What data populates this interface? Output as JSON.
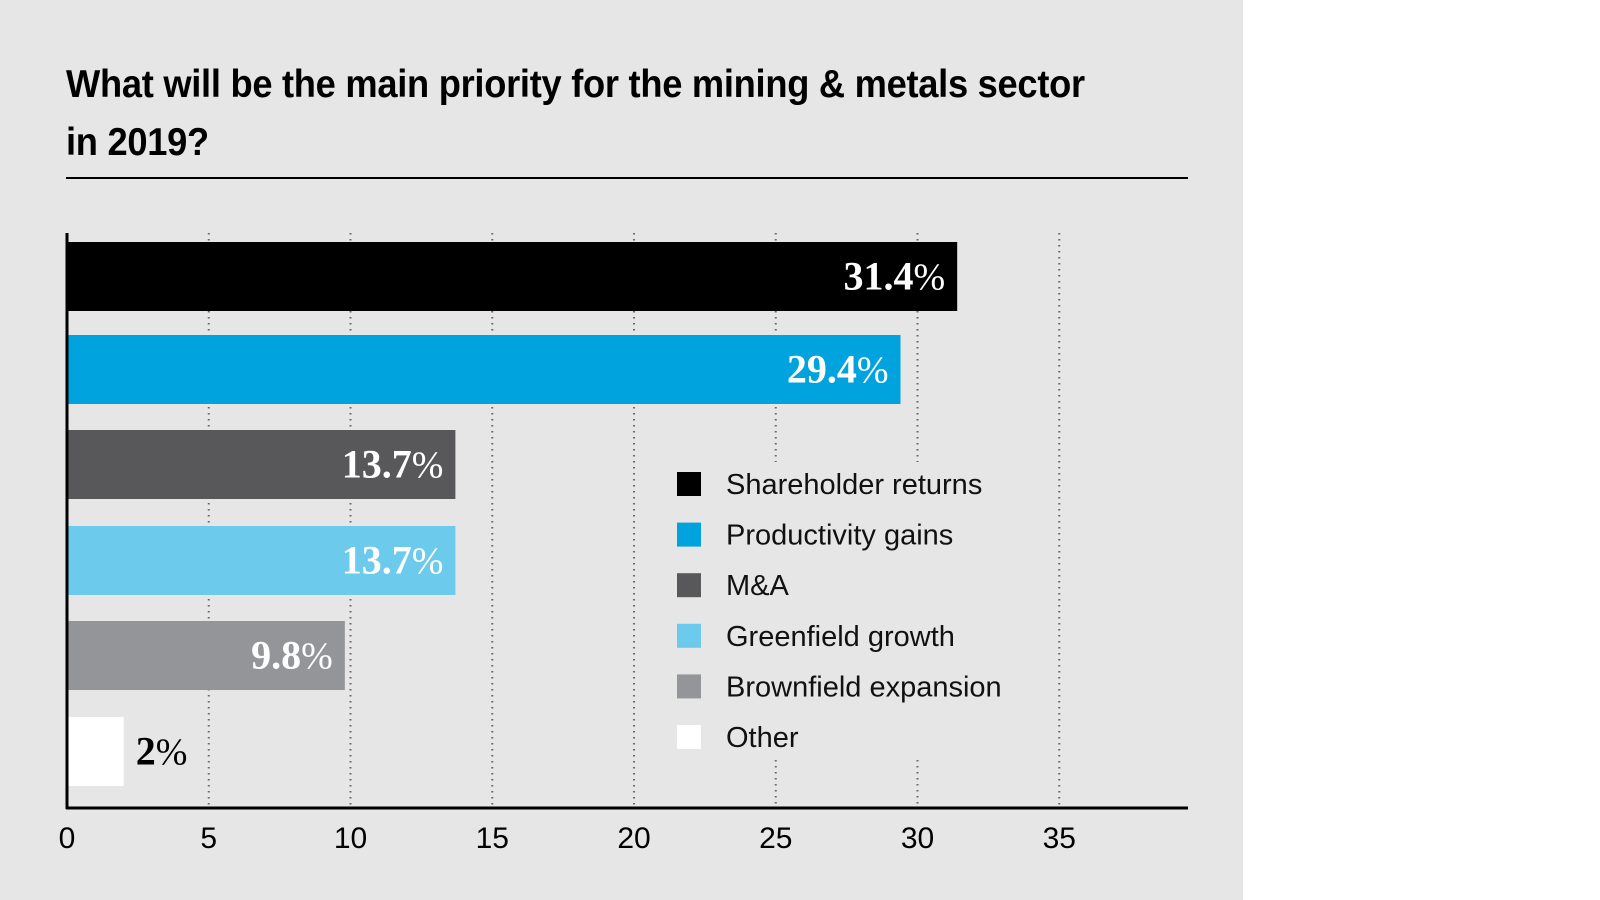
{
  "chart_data": {
    "type": "bar",
    "orientation": "horizontal",
    "title": "What will be the main priority for the mining & metals sector in 2019?",
    "categories": [
      "Shareholder returns",
      "Productivity gains",
      "M&A",
      "Greenfield growth",
      "Brownfield expansion",
      "Other"
    ],
    "values": [
      31.4,
      29.4,
      13.7,
      13.7,
      9.8,
      2
    ],
    "value_labels": [
      "31.4",
      "29.4",
      "13.7",
      "13.7",
      "9.8",
      "2"
    ],
    "value_suffix": "%",
    "colors": [
      "#000000",
      "#00a3dd",
      "#58585a",
      "#6ccaec",
      "#939598",
      "#ffffff"
    ],
    "label_colors": [
      "#ffffff",
      "#ffffff",
      "#ffffff",
      "#ffffff",
      "#ffffff",
      "#000000"
    ],
    "label_position": [
      "inside",
      "inside",
      "inside",
      "inside",
      "inside",
      "outside"
    ],
    "xlabel": "",
    "ylabel": "",
    "xlim": [
      0,
      39
    ],
    "xticks": [
      0,
      5,
      10,
      15,
      20,
      25,
      30,
      35
    ],
    "xtick_labels": [
      "0",
      "5",
      "10",
      "15",
      "20",
      "25",
      "30",
      "35"
    ],
    "grid": "vertical dotted",
    "legend": {
      "position": "center-right",
      "entries": [
        "Shareholder returns",
        "Productivity gains",
        "M&A",
        "Greenfield growth",
        "Brownfield expansion",
        "Other"
      ]
    }
  },
  "colors": {
    "panel_background": "#e6e6e6",
    "page_background": "#ffffff",
    "gridline": "#666666",
    "axis": "#000000"
  }
}
